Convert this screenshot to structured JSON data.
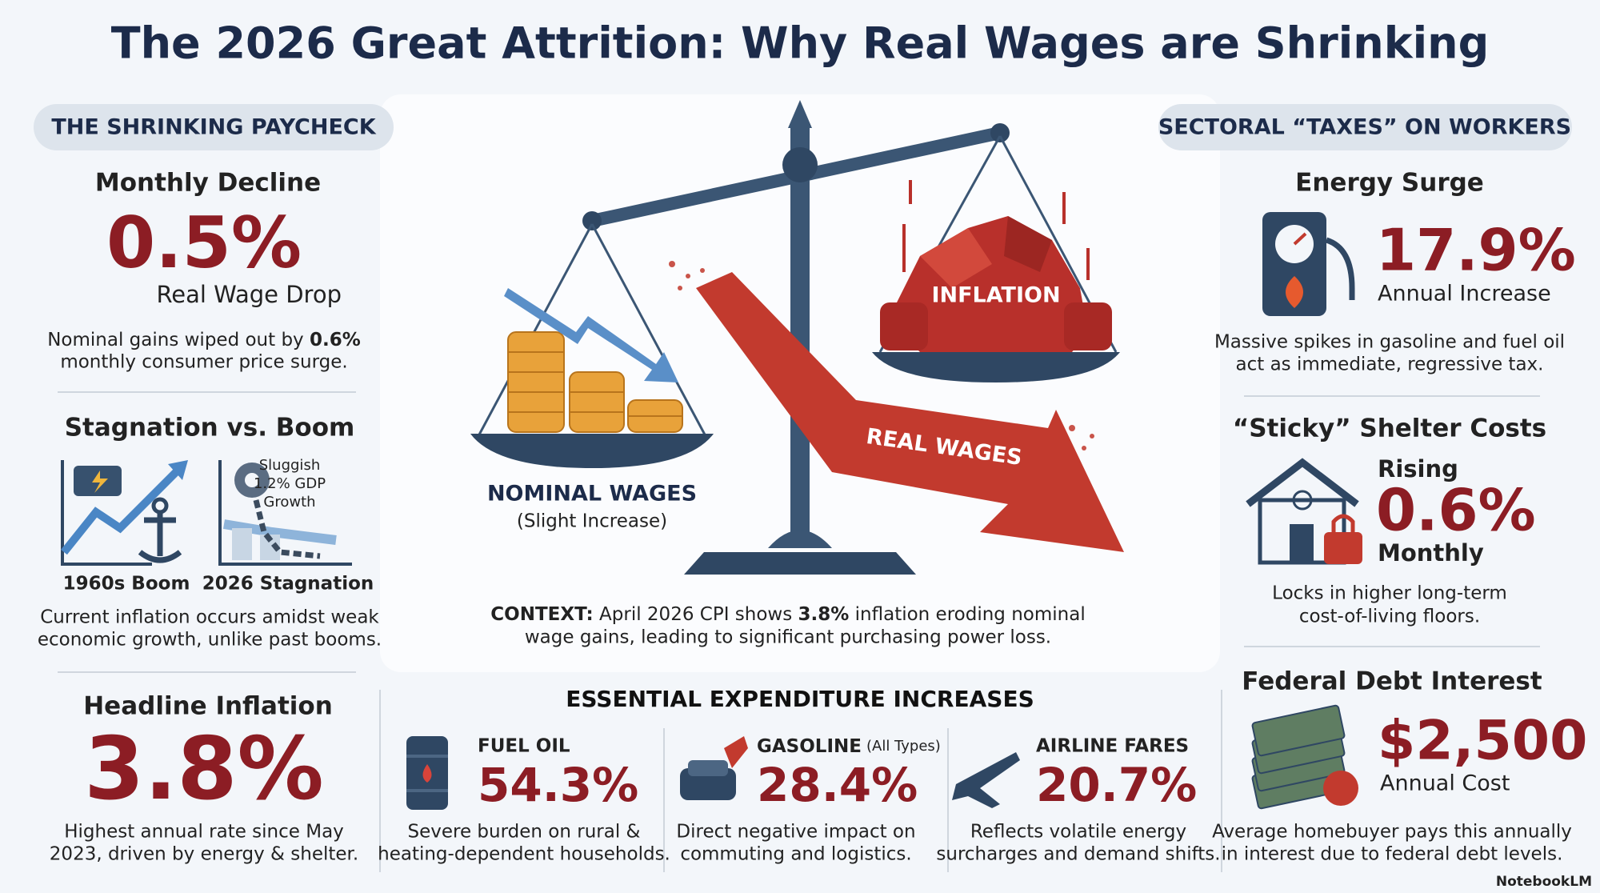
{
  "title": "The 2026 Great Attrition: Why Real Wages are Shrinking",
  "shrinking_paycheck": {
    "header": "THE SHRINKING PAYCHECK",
    "monthly_decline": {
      "heading": "Monthly Decline",
      "value": "0.5%",
      "label": "Real Wage Drop",
      "text": [
        "Nominal gains wiped out by ",
        "0.6%",
        "monthly consumer price surge."
      ]
    },
    "stagnation": {
      "heading": "Stagnation vs. Boom",
      "note": [
        "Sluggish",
        "1.2% GDP",
        "Growth"
      ],
      "boom_label": "1960s Boom",
      "stagnation_label": "2026 Stagnation",
      "text": [
        "Current inflation occurs amidst weak",
        "economic growth, unlike past booms."
      ]
    },
    "headline_inflation": {
      "heading": "Headline Inflation",
      "value": "3.8%",
      "text": [
        "Highest annual rate since May",
        "2023, driven by energy & shelter."
      ]
    }
  },
  "scale": {
    "inflation_label": "INFLATION",
    "real_wages_label": "REAL WAGES",
    "nominal_label": "NOMINAL WAGES",
    "nominal_note": "(Slight Increase)",
    "context": [
      "CONTEXT:",
      " April 2026 CPI shows ",
      "3.8%",
      " inflation eroding nominal",
      "wage gains, leading to significant purchasing power loss."
    ]
  },
  "expenditures": {
    "header": "ESSENTIAL EXPENDITURE INCREASES",
    "items": [
      {
        "label": "FUEL OIL",
        "value": "54.3%",
        "text": [
          "Severe burden on rural &",
          "heating-dependent households."
        ]
      },
      {
        "label": "GASOLINE",
        "qualifier": "(All Types)",
        "value": "28.4%",
        "text": [
          "Direct negative impact on",
          "commuting and logistics."
        ]
      },
      {
        "label": "AIRLINE FARES",
        "value": "20.7%",
        "text": [
          "Reflects volatile energy",
          "surcharges and demand shifts."
        ]
      }
    ]
  },
  "sectoral": {
    "header": "SECTORAL “TAXES” ON WORKERS",
    "energy": {
      "heading": "Energy Surge",
      "value": "17.9%",
      "label": "Annual Increase",
      "text": [
        "Massive spikes in gasoline and fuel oil",
        "act as immediate, regressive tax."
      ]
    },
    "shelter": {
      "heading": "“Sticky” Shelter Costs",
      "prefix": "Rising",
      "value": "0.6%",
      "label": "Monthly",
      "text": [
        "Locks in higher long-term",
        "cost-of-living floors."
      ]
    },
    "debt": {
      "heading": "Federal Debt Interest",
      "value": "$2,500",
      "label": "Annual Cost",
      "text": [
        "Average homebuyer pays this annually",
        "in interest due to federal debt levels."
      ]
    }
  },
  "brand": "NotebookLM"
}
